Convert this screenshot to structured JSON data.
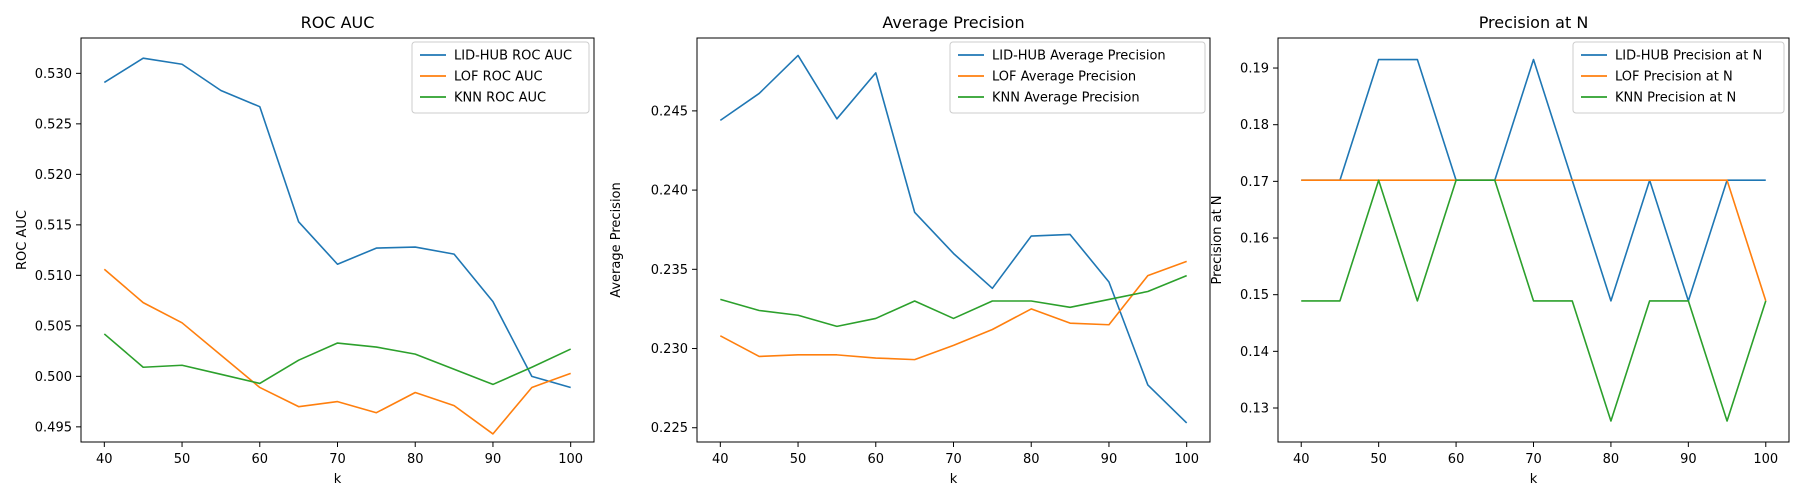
{
  "colors": {
    "lid_hub": "#1f77b4",
    "lof": "#ff7f0e",
    "knn": "#2ca02c"
  },
  "chart_data": [
    {
      "type": "line",
      "title": "ROC AUC",
      "xlabel": "k",
      "ylabel": "ROC AUC",
      "xlim": [
        37,
        103
      ],
      "ylim": [
        0.4935,
        0.5335
      ],
      "xticks": [
        40,
        50,
        60,
        70,
        80,
        90,
        100
      ],
      "yticks": [
        0.495,
        0.5,
        0.505,
        0.51,
        0.515,
        0.52,
        0.525,
        0.53
      ],
      "ytick_labels": [
        "0.495",
        "0.500",
        "0.505",
        "0.510",
        "0.515",
        "0.520",
        "0.525",
        "0.530"
      ],
      "legend_position": "top-right",
      "grid": false,
      "x": [
        40,
        45,
        50,
        55,
        60,
        65,
        70,
        75,
        80,
        85,
        90,
        95,
        100
      ],
      "series": [
        {
          "name": "LID-HUB ROC AUC",
          "color": "#1f77b4",
          "values": [
            0.5291,
            0.5315,
            0.5309,
            0.5283,
            0.5267,
            0.5153,
            0.5111,
            0.5127,
            0.5128,
            0.5121,
            0.5074,
            0.5,
            0.4989
          ]
        },
        {
          "name": "LOF ROC AUC",
          "color": "#ff7f0e",
          "values": [
            0.5106,
            0.5073,
            0.5053,
            0.5021,
            0.4989,
            0.497,
            0.4975,
            0.4964,
            0.4984,
            0.4971,
            0.4943,
            0.4989,
            0.5003
          ]
        },
        {
          "name": "KNN ROC AUC",
          "color": "#2ca02c",
          "values": [
            0.5042,
            0.5009,
            0.5011,
            0.5002,
            0.4993,
            0.5016,
            0.5033,
            0.5029,
            0.5022,
            0.5007,
            0.4992,
            0.5009,
            0.5027
          ]
        }
      ]
    },
    {
      "type": "line",
      "title": "Average Precision",
      "xlabel": "k",
      "ylabel": "Average Precision",
      "xlim": [
        37,
        103
      ],
      "ylim": [
        0.2241,
        0.2496
      ],
      "xticks": [
        40,
        50,
        60,
        70,
        80,
        90,
        100
      ],
      "yticks": [
        0.225,
        0.23,
        0.235,
        0.24,
        0.245
      ],
      "ytick_labels": [
        "0.225",
        "0.230",
        "0.235",
        "0.240",
        "0.245"
      ],
      "legend_position": "top-right",
      "grid": false,
      "x": [
        40,
        45,
        50,
        55,
        60,
        65,
        70,
        75,
        80,
        85,
        90,
        95,
        100
      ],
      "series": [
        {
          "name": "LID-HUB Average Precision",
          "color": "#1f77b4",
          "values": [
            0.2444,
            0.2461,
            0.2485,
            0.2445,
            0.2474,
            0.2386,
            0.236,
            0.2338,
            0.2371,
            0.2372,
            0.2342,
            0.2277,
            0.2253
          ]
        },
        {
          "name": "LOF Average Precision",
          "color": "#ff7f0e",
          "values": [
            0.2308,
            0.2295,
            0.2296,
            0.2296,
            0.2294,
            0.2293,
            0.2302,
            0.2312,
            0.2325,
            0.2316,
            0.2315,
            0.2346,
            0.2355
          ]
        },
        {
          "name": "KNN Average Precision",
          "color": "#2ca02c",
          "values": [
            0.2331,
            0.2324,
            0.2321,
            0.2314,
            0.2319,
            0.233,
            0.2319,
            0.233,
            0.233,
            0.2326,
            0.2331,
            0.2336,
            0.2346
          ]
        }
      ]
    },
    {
      "type": "line",
      "title": "Precision at N",
      "xlabel": "k",
      "ylabel": "Precision at N",
      "xlim": [
        37,
        103
      ],
      "ylim": [
        0.124,
        0.1953
      ],
      "xticks": [
        40,
        50,
        60,
        70,
        80,
        90,
        100
      ],
      "yticks": [
        0.13,
        0.14,
        0.15,
        0.16,
        0.17,
        0.18,
        0.19
      ],
      "ytick_labels": [
        "0.13",
        "0.14",
        "0.15",
        "0.16",
        "0.17",
        "0.18",
        "0.19"
      ],
      "legend_position": "top-right",
      "grid": false,
      "x": [
        40,
        45,
        50,
        55,
        60,
        65,
        70,
        75,
        80,
        85,
        90,
        95,
        100
      ],
      "series": [
        {
          "name": "LID-HUB Precision at N",
          "color": "#1f77b4",
          "values": [
            0.1702,
            0.1702,
            0.1915,
            0.1915,
            0.1702,
            0.1702,
            0.1915,
            0.1702,
            0.1489,
            0.1702,
            0.1489,
            0.1702,
            0.1702
          ]
        },
        {
          "name": "LOF Precision at N",
          "color": "#ff7f0e",
          "values": [
            0.1702,
            0.1702,
            0.1702,
            0.1702,
            0.1702,
            0.1702,
            0.1702,
            0.1702,
            0.1702,
            0.1702,
            0.1702,
            0.1702,
            0.1489
          ]
        },
        {
          "name": "KNN Precision at N",
          "color": "#2ca02c",
          "values": [
            0.1489,
            0.1489,
            0.1702,
            0.1489,
            0.1702,
            0.1702,
            0.1489,
            0.1489,
            0.1277,
            0.1489,
            0.1489,
            0.1277,
            0.1489
          ]
        }
      ]
    }
  ]
}
